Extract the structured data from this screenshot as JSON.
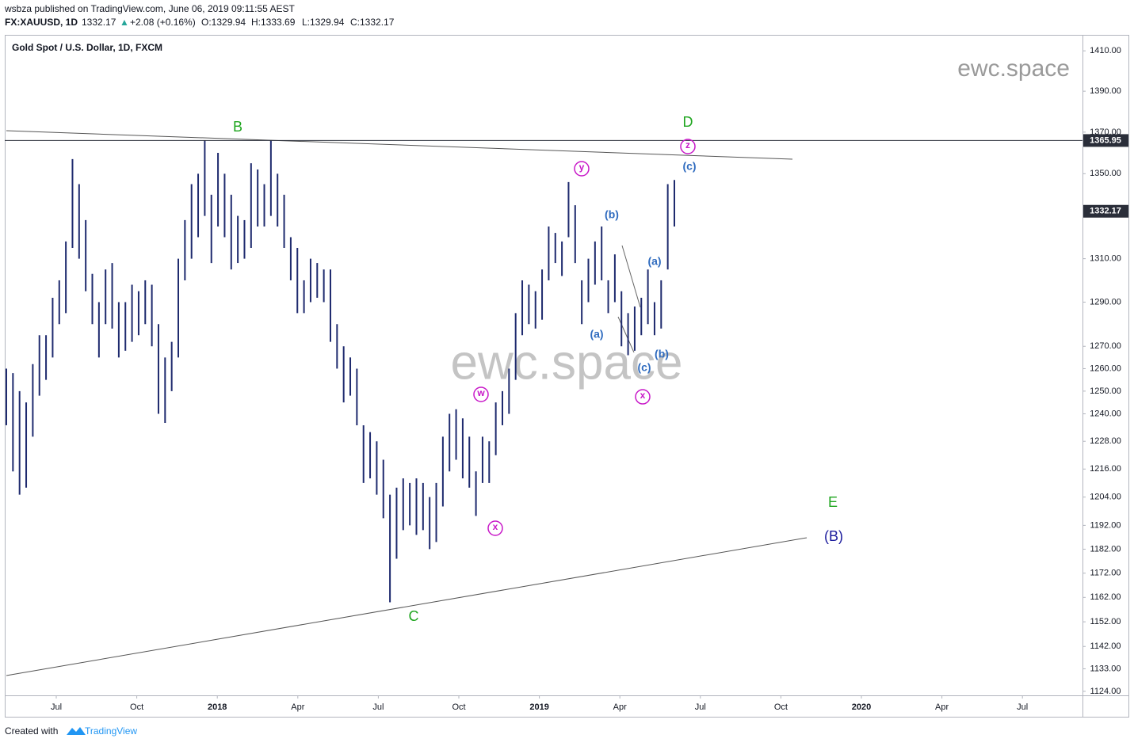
{
  "header": {
    "publisher": "wsbza published on TradingView.com, June 06, 2019 09:11:55 AEST",
    "symbol": "FX:XAUUSD, 1D",
    "last": "1332.17",
    "arrow": "▲",
    "change": "+2.08 (+0.16%)",
    "open": "O:1329.94",
    "high": "H:1333.69",
    "low": "L:1329.94",
    "close": "C:1332.17"
  },
  "footer": {
    "created": "Created with",
    "brand": "TradingView"
  },
  "chart_data": {
    "type": "ohlc",
    "title": "Gold Spot / U.S. Dollar, 1D, FXCM",
    "watermark": "ewc.space",
    "color": "#1e2a6e",
    "log_scale": true,
    "ylim": [
      1122.4,
      1418
    ],
    "yticks": [
      {
        "value": 1410,
        "label": "1410.00"
      },
      {
        "value": 1390,
        "label": "1390.00"
      },
      {
        "value": 1370,
        "label": "1370.00"
      },
      {
        "value": 1350,
        "label": "1350.00"
      },
      {
        "value": 1310,
        "label": "1310.00"
      },
      {
        "value": 1290,
        "label": "1290.00"
      },
      {
        "value": 1270,
        "label": "1270.00"
      },
      {
        "value": 1260,
        "label": "1260.00"
      },
      {
        "value": 1250,
        "label": "1250.00"
      },
      {
        "value": 1240,
        "label": "1240.00"
      },
      {
        "value": 1228,
        "label": "1228.00"
      },
      {
        "value": 1216,
        "label": "1216.00"
      },
      {
        "value": 1204,
        "label": "1204.00"
      },
      {
        "value": 1192,
        "label": "1192.00"
      },
      {
        "value": 1182,
        "label": "1182.00"
      },
      {
        "value": 1172,
        "label": "1172.00"
      },
      {
        "value": 1162,
        "label": "1162.00"
      },
      {
        "value": 1152,
        "label": "1152.00"
      },
      {
        "value": 1142,
        "label": "1142.00"
      },
      {
        "value": 1133,
        "label": "1133.00"
      },
      {
        "value": 1124,
        "label": "1124.00"
      }
    ],
    "x_ticks": [
      "Jul",
      "Oct",
      "2018",
      "Apr",
      "Jul",
      "Oct",
      "2019",
      "Apr",
      "Jul",
      "Oct",
      "2020",
      "Apr",
      "Jul"
    ],
    "bars": [
      [
        1260,
        1235
      ],
      [
        1258,
        1215
      ],
      [
        1250,
        1205
      ],
      [
        1245,
        1208
      ],
      [
        1262,
        1230
      ],
      [
        1275,
        1248
      ],
      [
        1275,
        1255
      ],
      [
        1292,
        1265
      ],
      [
        1300,
        1280
      ],
      [
        1318,
        1285
      ],
      [
        1357,
        1315
      ],
      [
        1345,
        1310
      ],
      [
        1328,
        1295
      ],
      [
        1303,
        1280
      ],
      [
        1290,
        1265
      ],
      [
        1305,
        1280
      ],
      [
        1308,
        1278
      ],
      [
        1290,
        1265
      ],
      [
        1290,
        1268
      ],
      [
        1298,
        1272
      ],
      [
        1295,
        1275
      ],
      [
        1300,
        1280
      ],
      [
        1298,
        1270
      ],
      [
        1280,
        1240
      ],
      [
        1265,
        1236
      ],
      [
        1272,
        1250
      ],
      [
        1310,
        1265
      ],
      [
        1328,
        1300
      ],
      [
        1345,
        1310
      ],
      [
        1350,
        1320
      ],
      [
        1366,
        1330
      ],
      [
        1340,
        1308
      ],
      [
        1360,
        1325
      ],
      [
        1350,
        1320
      ],
      [
        1340,
        1305
      ],
      [
        1330,
        1308
      ],
      [
        1328,
        1310
      ],
      [
        1355,
        1315
      ],
      [
        1352,
        1325
      ],
      [
        1345,
        1325
      ],
      [
        1366,
        1330
      ],
      [
        1350,
        1325
      ],
      [
        1340,
        1315
      ],
      [
        1320,
        1300
      ],
      [
        1315,
        1285
      ],
      [
        1300,
        1285
      ],
      [
        1310,
        1290
      ],
      [
        1308,
        1292
      ],
      [
        1305,
        1290
      ],
      [
        1305,
        1272
      ],
      [
        1280,
        1260
      ],
      [
        1270,
        1245
      ],
      [
        1265,
        1248
      ],
      [
        1260,
        1235
      ],
      [
        1235,
        1210
      ],
      [
        1232,
        1212
      ],
      [
        1228,
        1205
      ],
      [
        1220,
        1195
      ],
      [
        1205,
        1160
      ],
      [
        1208,
        1178
      ],
      [
        1212,
        1190
      ],
      [
        1210,
        1192
      ],
      [
        1212,
        1188
      ],
      [
        1210,
        1190
      ],
      [
        1204,
        1182
      ],
      [
        1210,
        1185
      ],
      [
        1230,
        1200
      ],
      [
        1240,
        1215
      ],
      [
        1242,
        1220
      ],
      [
        1238,
        1212
      ],
      [
        1230,
        1208
      ],
      [
        1215,
        1196
      ],
      [
        1230,
        1210
      ],
      [
        1228,
        1210
      ],
      [
        1245,
        1222
      ],
      [
        1250,
        1235
      ],
      [
        1260,
        1240
      ],
      [
        1285,
        1255
      ],
      [
        1300,
        1275
      ],
      [
        1298,
        1280
      ],
      [
        1295,
        1278
      ],
      [
        1305,
        1282
      ],
      [
        1325,
        1300
      ],
      [
        1322,
        1308
      ],
      [
        1318,
        1302
      ],
      [
        1346,
        1320
      ],
      [
        1335,
        1308
      ],
      [
        1300,
        1280
      ],
      [
        1310,
        1290
      ],
      [
        1318,
        1298
      ],
      [
        1325,
        1300
      ],
      [
        1300,
        1285
      ],
      [
        1312,
        1290
      ],
      [
        1295,
        1270
      ],
      [
        1285,
        1266
      ],
      [
        1288,
        1268
      ],
      [
        1292,
        1275
      ],
      [
        1305,
        1280
      ],
      [
        1290,
        1275
      ],
      [
        1300,
        1278
      ],
      [
        1345,
        1305
      ],
      [
        1347,
        1325
      ]
    ],
    "price_lines": [
      {
        "value": 1365.95,
        "color": "#2a2e39",
        "label_bg": "#2a2e39"
      },
      {
        "value": 1332.17,
        "color": null,
        "label_bg": "#2a2e39"
      }
    ],
    "annotations": [
      {
        "text": "B",
        "color": "#1ea51e",
        "circled": false
      },
      {
        "text": "D",
        "color": "#1ea51e",
        "circled": false
      },
      {
        "text": "z",
        "color": "#c818c8",
        "circled": true
      },
      {
        "text": "(c)",
        "color": "#2f6bbf",
        "circled": false
      },
      {
        "text": "y",
        "color": "#c818c8",
        "circled": true
      },
      {
        "text": "(b)",
        "color": "#2f6bbf",
        "circled": false
      },
      {
        "text": "(a)",
        "color": "#2f6bbf",
        "circled": false
      },
      {
        "text": "(a)",
        "color": "#2f6bbf",
        "circled": false
      },
      {
        "text": "(b)",
        "color": "#2f6bbf",
        "circled": false
      },
      {
        "text": "(c)",
        "color": "#2f6bbf",
        "circled": false
      },
      {
        "text": "x",
        "color": "#c818c8",
        "circled": true
      },
      {
        "text": "w",
        "color": "#c818c8",
        "circled": true
      },
      {
        "text": "x",
        "color": "#c818c8",
        "circled": true
      },
      {
        "text": "C",
        "color": "#1ea51e",
        "circled": false
      },
      {
        "text": "E",
        "color": "#1ea51e",
        "circled": false
      },
      {
        "text": "(B)",
        "color": "#1a1a9c",
        "circled": false
      }
    ]
  }
}
